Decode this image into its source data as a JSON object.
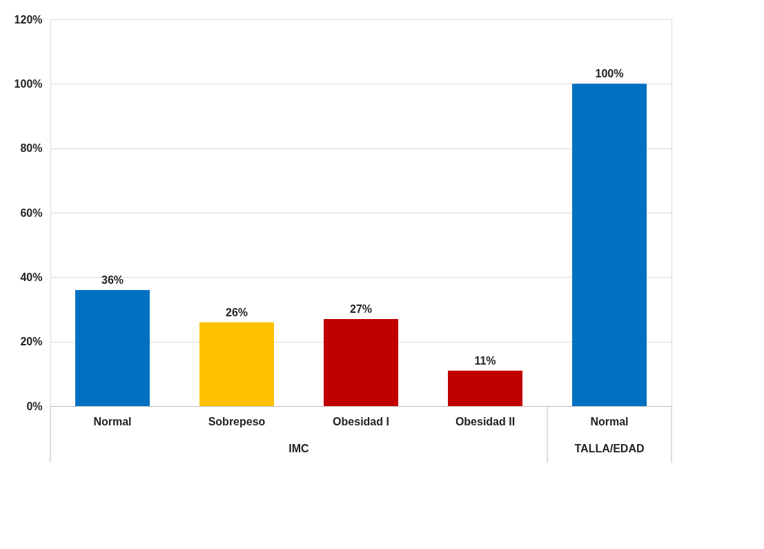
{
  "chart_data": {
    "type": "bar",
    "categories": [
      "Normal",
      "Sobrepeso",
      "Obesidad I",
      "Obesidad II",
      "Normal"
    ],
    "values": [
      36,
      26,
      27,
      11,
      100
    ],
    "colors": [
      "#0070c0",
      "#ffc000",
      "#c00000",
      "#c00000",
      "#0070c0"
    ],
    "value_labels": [
      "36%",
      "26%",
      "27%",
      "11%",
      "100%"
    ],
    "ylim": [
      0,
      120
    ],
    "yticks": [
      {
        "value": 0,
        "label": "0%"
      },
      {
        "value": 20,
        "label": "20%"
      },
      {
        "value": 40,
        "label": "40%"
      },
      {
        "value": 60,
        "label": "60%"
      },
      {
        "value": 80,
        "label": "80%"
      },
      {
        "value": 100,
        "label": "100%"
      },
      {
        "value": 120,
        "label": "120%"
      }
    ],
    "grid": "y",
    "annotations": [
      "IMC",
      "TALLA/EDAD"
    ]
  }
}
